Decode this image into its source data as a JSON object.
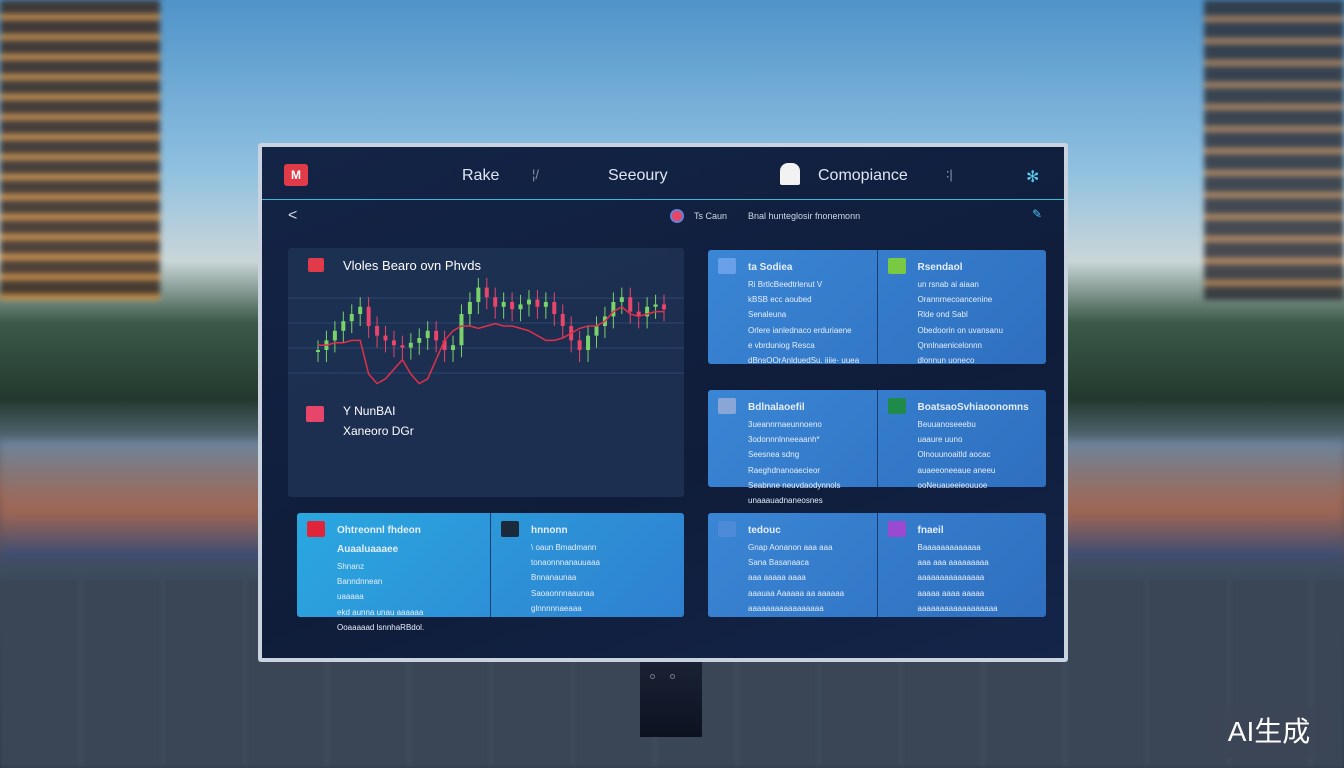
{
  "header": {
    "logo": "M",
    "nav": [
      "Rake",
      "Seeoury",
      "Comopiance"
    ],
    "marks": [
      "¦/",
      "∶|"
    ]
  },
  "subheader": {
    "back": "<",
    "account": "Ts Caun",
    "message": "Bnal hunteglosir fnonemonn",
    "edit_icon": "pencil-icon"
  },
  "chart_panel": {
    "title": "Vloles Bearo ovn Phvds",
    "sub1": "Y NunBAI",
    "sub2": "Xaneoro DGr",
    "chart_data": {
      "type": "candlestick",
      "series": [
        {
          "values": [
            40,
            44,
            48,
            52,
            55,
            58,
            50,
            46,
            44,
            42,
            41,
            43,
            45,
            48,
            44,
            40,
            42,
            55,
            60,
            66,
            62,
            58,
            60,
            57,
            59,
            61,
            58,
            60,
            55,
            50,
            44,
            40,
            46,
            50,
            54,
            60,
            62,
            56,
            54,
            58,
            59,
            57
          ]
        },
        {
          "kind": "line",
          "values": [
            42,
            42,
            43,
            43,
            44,
            44,
            30,
            26,
            28,
            32,
            36,
            30,
            26,
            28,
            36,
            44,
            48,
            50,
            50,
            49,
            50,
            51,
            50,
            50,
            49,
            48,
            46,
            44,
            44,
            45,
            47,
            49,
            50,
            50,
            52,
            56,
            58,
            55,
            54,
            55,
            56,
            56
          ]
        }
      ],
      "colors": {
        "up": "#7ad36a",
        "down": "#e8456a",
        "line": "#e0304a"
      }
    }
  },
  "cards": [
    {
      "left": {
        "icon": "server-icon",
        "color": "#6aa0e8",
        "title": "ta Sodiea",
        "lines": [
          "Ri BrtlcBeedtrlenut V",
          "kBSB ecc aoubed",
          "Senaleuna",
          "Orlere ianlednaco erduriaene",
          "e vbrduniog Resca",
          "dBnsOOrAnlduedSu. iiiie· uuea"
        ]
      },
      "right": {
        "icon": "check-icon",
        "color": "#7ac943",
        "title": "Rsendaol",
        "lines": [
          "un rsnab ai aiaan",
          "Orannrnecoancenine",
          "Rlde ond Sabl",
          "Obedoorin on uvansanu",
          "Qnnlnaenicelonnn",
          "dlonnun uoneco"
        ]
      }
    },
    {
      "left": {
        "icon": "database-icon",
        "color": "#8aa6d6",
        "title": "Bdlnalaoefil",
        "lines": [
          "3ueannrnaeunnoeno",
          "3odonnnlnneeaanh*",
          "Seesnea sdng Raeghdnanoaecieor",
          "Seabnne neuvdaodynnols",
          "unaaauadnaneosnes"
        ]
      },
      "right": {
        "icon": "document-icon",
        "color": "#1f8a4a",
        "title": "BoatsaoSvhiaoonomns",
        "lines": [
          "Beuuanoseeebu",
          "uaaure uuno",
          "Olnouunoaitld aocac",
          "auaeeoneeaue aneeu",
          "ooNeuaueeieouuoe"
        ]
      }
    },
    {
      "left": {
        "icon": "alert-icon",
        "color": "#e1243a",
        "title": "Ohtreonnl fhdeon Auaaluaaaee",
        "lines": [
          "Shnanz",
          "Banndnnean",
          "uaaaaa",
          "ekd aunna unau aaaaaa",
          "Ooaaaaad lsnnhaRBdol."
        ]
      },
      "right": {
        "icon": "terminal-icon",
        "color": "#1b2a3a",
        "title": "hnnonn",
        "lines": [
          "\\ oaun Bmadmann",
          "tonaonnnanauuaaa",
          "Bnnanaunaa",
          "Saoaonnnaaunaa",
          "glnnnnnaeaaa"
        ]
      }
    },
    {
      "left": {
        "icon": "user-icon",
        "color": "#4d8ad8",
        "title": "tedouc",
        "lines": [
          "Gnap Aonanon aaa aaa",
          "Sana Basanaaca",
          "aaa aaaaa aaaa",
          "aaauaa Aaaaaa aa aaaaaa",
          "aaaaaaaaaaaaaaaaa"
        ]
      },
      "right": {
        "icon": "close-x-icon",
        "color": "#9a4ad0",
        "title": "fnaeil",
        "lines": [
          "Baaaaaaaaaaaaa",
          "aaa aaa aaaaaaaaa",
          "aaaaaaaaaaaaaaa",
          "aaaaa aaaa aaaaa",
          "aaaaaaaaaaaaaaaaaa"
        ]
      }
    }
  ],
  "watermark": "AI生成"
}
